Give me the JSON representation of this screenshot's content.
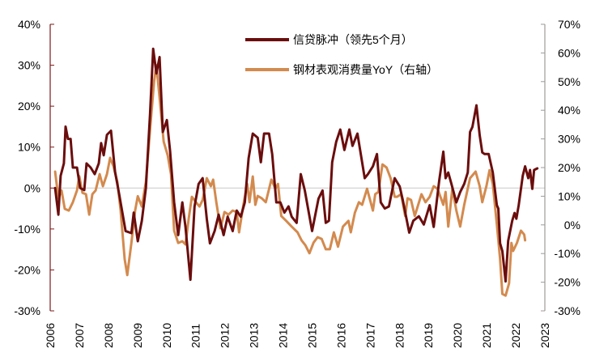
{
  "chart_data": {
    "type": "line",
    "title": "",
    "xlabel": "",
    "ylabel": "",
    "xlim": [
      2006,
      2023
    ],
    "x_ticks": [
      "2006",
      "2007",
      "2008",
      "2009",
      "2010",
      "2011",
      "2012",
      "2013",
      "2014",
      "2015",
      "2016",
      "2017",
      "2018",
      "2019",
      "2020",
      "2021",
      "2022",
      "2023"
    ],
    "ylim_left": [
      -0.3,
      0.4
    ],
    "ylim_right": [
      -0.3,
      0.7
    ],
    "y_ticks_left": [
      "40%",
      "30%",
      "20%",
      "10%",
      "0%",
      "-10%",
      "-20%",
      "-30%"
    ],
    "y_ticks_right": [
      "70%",
      "60%",
      "50%",
      "40%",
      "30%",
      "20%",
      "10%",
      "0%",
      "-10%",
      "-20%",
      "-30%"
    ],
    "grid": false,
    "zero_line_left": true,
    "legend_placement": "top-center",
    "series": [
      {
        "name": "信贷脉冲（领先5个月）",
        "axis": "left",
        "color": "#6B0D0D",
        "x": [
          2006.17,
          2006.28,
          2006.36,
          2006.47,
          2006.53,
          2006.61,
          2006.7,
          2006.78,
          2006.92,
          2007.03,
          2007.17,
          2007.25,
          2007.39,
          2007.53,
          2007.67,
          2007.75,
          2007.84,
          2007.95,
          2008.09,
          2008.23,
          2008.37,
          2008.59,
          2008.79,
          2008.87,
          2009.01,
          2009.15,
          2009.29,
          2009.43,
          2009.54,
          2009.65,
          2009.76,
          2009.87,
          2010.01,
          2010.12,
          2010.26,
          2010.4,
          2010.54,
          2010.65,
          2010.82,
          2010.96,
          2011.1,
          2011.24,
          2011.38,
          2011.49,
          2011.65,
          2011.79,
          2011.96,
          2012.1,
          2012.27,
          2012.41,
          2012.55,
          2012.69,
          2012.82,
          2012.96,
          2013.13,
          2013.24,
          2013.35,
          2013.52,
          2013.63,
          2013.77,
          2013.91,
          2014.05,
          2014.19,
          2014.3,
          2014.47,
          2014.61,
          2014.75,
          2015.0,
          2015.22,
          2015.36,
          2015.47,
          2015.58,
          2015.69,
          2015.83,
          2015.97,
          2016.11,
          2016.28,
          2016.39,
          2016.56,
          2016.81,
          2016.92,
          2017.09,
          2017.23,
          2017.36,
          2017.5,
          2017.64,
          2017.84,
          2018.01,
          2018.12,
          2018.34,
          2018.48,
          2018.67,
          2018.84,
          2019.04,
          2019.18,
          2019.37,
          2019.51,
          2019.59,
          2019.68,
          2019.79,
          2019.96,
          2020.09,
          2020.23,
          2020.35,
          2020.43,
          2020.51,
          2020.65,
          2020.76,
          2020.85,
          2020.93,
          2021.07,
          2021.21,
          2021.35,
          2021.4,
          2021.46,
          2021.54,
          2021.65,
          2021.74,
          2021.88,
          2021.96,
          2022.02,
          2022.1,
          2022.24,
          2022.32,
          2022.43,
          2022.49,
          2022.57,
          2022.63,
          2022.74
        ],
        "values": [
          0,
          -6.5,
          3,
          6,
          15,
          12,
          12,
          5,
          5,
          0,
          -0.5,
          6,
          5,
          3.4,
          6,
          11,
          8,
          13,
          14,
          4,
          -1.5,
          -10.5,
          -11,
          -6,
          -13,
          -8,
          0,
          18,
          34,
          28,
          32,
          13.7,
          16.6,
          9,
          -3.5,
          -11.5,
          -3.5,
          -9.5,
          -22.4,
          -4.5,
          1,
          2.4,
          -7.5,
          -13.5,
          -10.5,
          -6.5,
          -11.5,
          -7,
          -10.5,
          -5.5,
          -7,
          -3.5,
          7.3,
          13.3,
          12.3,
          6.3,
          13.3,
          13.3,
          8.3,
          -3.5,
          -3.5,
          -6,
          -4.5,
          -7,
          -8.5,
          3.4,
          -0.6,
          -10.5,
          -2.6,
          -0.6,
          -8.5,
          -8,
          6.3,
          11.3,
          14.3,
          9.3,
          14.3,
          10.3,
          13.3,
          2.4,
          3.4,
          5.3,
          8.3,
          -3.5,
          -5,
          -4.5,
          2.4,
          0.4,
          -3,
          -10.9,
          -8,
          -6.9,
          -8.9,
          -4.2,
          -9.5,
          1.8,
          8.9,
          2.4,
          3.8,
          1,
          -3.5,
          -1,
          1,
          3.8,
          13.7,
          14.9,
          20.2,
          12.9,
          8.7,
          8.3,
          8.3,
          3.8,
          -4.2,
          -5,
          -13.5,
          -15.4,
          -22.8,
          -12.9,
          -8,
          -6.1,
          -7.5,
          -4.2,
          3,
          5.3,
          2.4,
          4.4,
          -0.2,
          4.4,
          4.8
        ]
      },
      {
        "name": "钢材表观消费量YoY（右轴）",
        "axis": "right",
        "color": "#D38A4E",
        "x": [
          2006.17,
          2006.28,
          2006.39,
          2006.5,
          2006.64,
          2006.78,
          2006.92,
          2007.0,
          2007.11,
          2007.23,
          2007.34,
          2007.45,
          2007.56,
          2007.7,
          2007.81,
          2007.95,
          2008.06,
          2008.17,
          2008.31,
          2008.42,
          2008.56,
          2008.65,
          2008.79,
          2008.92,
          2009.01,
          2009.15,
          2009.29,
          2009.43,
          2009.57,
          2009.65,
          2009.76,
          2009.9,
          2010.04,
          2010.15,
          2010.26,
          2010.4,
          2010.54,
          2010.65,
          2010.76,
          2010.87,
          2011.01,
          2011.13,
          2011.24,
          2011.38,
          2011.52,
          2011.6,
          2011.71,
          2011.85,
          2011.99,
          2012.13,
          2012.27,
          2012.41,
          2012.49,
          2012.63,
          2012.77,
          2012.85,
          2012.96,
          2013.05,
          2013.13,
          2013.27,
          2013.41,
          2013.6,
          2013.74,
          2013.83,
          2013.94,
          2014.11,
          2014.3,
          2014.5,
          2014.64,
          2014.77,
          2014.91,
          2015.05,
          2015.19,
          2015.33,
          2015.47,
          2015.61,
          2015.75,
          2015.89,
          2016.06,
          2016.25,
          2016.33,
          2016.47,
          2016.61,
          2016.72,
          2016.89,
          2017.09,
          2017.17,
          2017.28,
          2017.42,
          2017.56,
          2017.7,
          2017.84,
          2017.92,
          2018.06,
          2018.2,
          2018.28,
          2018.4,
          2018.53,
          2018.76,
          2018.9,
          2019.04,
          2019.18,
          2019.31,
          2019.51,
          2019.59,
          2019.68,
          2019.82,
          2019.96,
          2020.09,
          2020.23,
          2020.43,
          2020.62,
          2020.76,
          2020.85,
          2020.99,
          2021.1,
          2021.21,
          2021.35,
          2021.46,
          2021.54,
          2021.65,
          2021.77,
          2021.85,
          2021.91,
          2022.04,
          2022.18,
          2022.29,
          2022.32
        ],
        "values": [
          18.6,
          9.3,
          12,
          5.6,
          5,
          7.9,
          12,
          17,
          11.2,
          10.7,
          3.6,
          10.7,
          12,
          17.7,
          13.5,
          17.7,
          23.4,
          20.6,
          14.9,
          5,
          -12,
          -17.5,
          -6.3,
          5,
          10,
          6.4,
          15,
          33,
          50,
          55.8,
          44.5,
          29,
          24.2,
          17.7,
          -2,
          -6.3,
          -5.7,
          -6.8,
          2.2,
          9.8,
          7.9,
          6.4,
          8.7,
          16.3,
          13.5,
          15.8,
          7.9,
          -1.2,
          4.5,
          3.6,
          5,
          4.5,
          -2.6,
          6.4,
          14.3,
          7.9,
          16.9,
          7,
          10.1,
          9.3,
          7.9,
          15.8,
          12.6,
          14.3,
          3.1,
          1.4,
          -0.6,
          -2.6,
          -5.4,
          -7.1,
          -9.9,
          -6.2,
          -4.3,
          -4.9,
          -8.5,
          -8.5,
          -2.6,
          -7.6,
          -0.6,
          1.4,
          -2.6,
          4.2,
          7.9,
          7,
          12.6,
          5,
          10.7,
          11.5,
          21.1,
          20,
          16.3,
          9.8,
          9.8,
          10.7,
          3.1,
          9.3,
          8.7,
          3.1,
          10.7,
          7.9,
          9.8,
          13.5,
          12.6,
          7,
          11.5,
          -0.6,
          12.6,
          5,
          -0.6,
          7,
          16.3,
          18.6,
          13.5,
          7.9,
          13.5,
          19.1,
          14.3,
          0.2,
          -11.9,
          -24.1,
          -24.7,
          -20.4,
          -6.3,
          -9.1,
          -6.3,
          -2,
          -3.4,
          -5.4
        ]
      }
    ]
  }
}
